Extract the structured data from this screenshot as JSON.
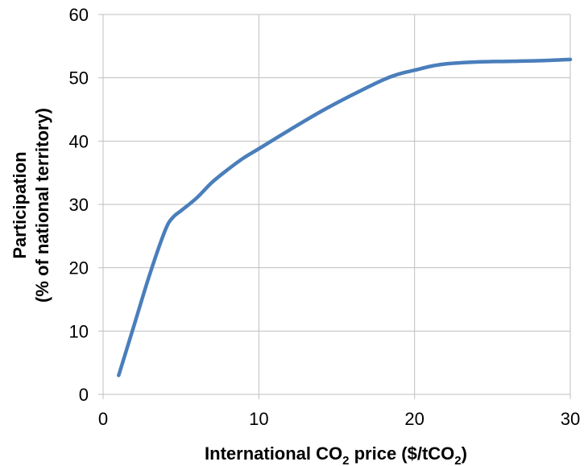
{
  "chart_data": {
    "type": "line",
    "title": "",
    "xlabel": {
      "main": "International  CO",
      "sub": "2",
      "rest": " price  ($/tCO",
      "sub2": "2",
      "end": ")"
    },
    "ylabel": {
      "line1": "Participation",
      "line2": "(% of national territory)"
    },
    "xlim": [
      0,
      30
    ],
    "ylim": [
      0,
      60
    ],
    "xticks": [
      0,
      10,
      20,
      30
    ],
    "yticks": [
      0,
      10,
      20,
      30,
      40,
      50,
      60
    ],
    "grid": true,
    "line_color": "#4a7ebb",
    "grid_color": "#bfbfbf",
    "series": [
      {
        "x": [
          1,
          2,
          3,
          4,
          4.5,
          5,
          6,
          7,
          8,
          9,
          10,
          12,
          14,
          16,
          18,
          19,
          20,
          21,
          22,
          24,
          26,
          28,
          30
        ],
        "y": [
          3,
          11,
          19,
          26,
          28,
          29,
          31,
          33.5,
          35.5,
          37.3,
          38.8,
          41.8,
          44.7,
          47.3,
          49.7,
          50.6,
          51.2,
          51.8,
          52.2,
          52.5,
          52.6,
          52.7,
          52.9
        ]
      }
    ]
  }
}
